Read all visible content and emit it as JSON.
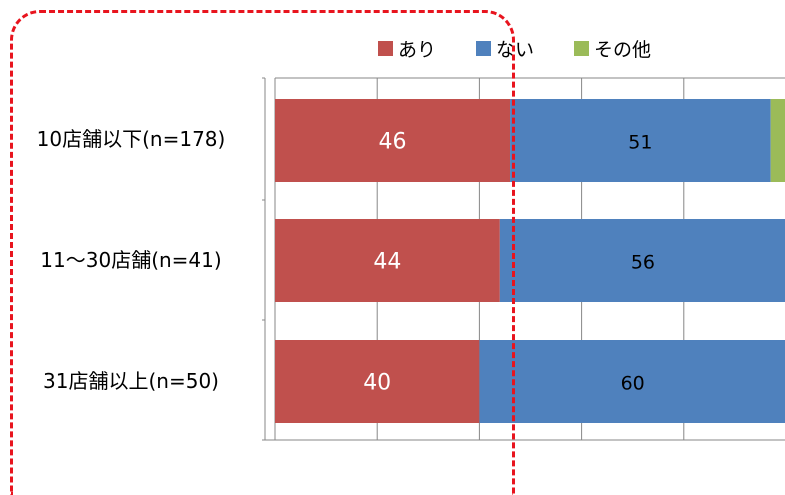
{
  "legend": [
    {
      "label": "あり",
      "color": "#c0504d"
    },
    {
      "label": "ない",
      "color": "#4f81bd"
    },
    {
      "label": "その他",
      "color": "#9bbb59"
    }
  ],
  "chart_data": {
    "type": "bar",
    "orientation": "horizontal-stacked",
    "categories": [
      "10店舗以下(n=178)",
      "11〜30店舗(n=41)",
      "31店舗以上(n=50)"
    ],
    "series": [
      {
        "name": "あり",
        "values": [
          46,
          44,
          40
        ],
        "color": "#c0504d",
        "label_color": "#ffffff"
      },
      {
        "name": "ない",
        "values": [
          51,
          56,
          60
        ],
        "color": "#4f81bd",
        "label_color": "#000000"
      },
      {
        "name": "その他",
        "values": [
          3,
          0,
          0
        ],
        "color": "#9bbb59",
        "label_color": "#000000"
      }
    ],
    "xlim": [
      0,
      100
    ],
    "gridlines": [
      0,
      20,
      40,
      60,
      80,
      100
    ],
    "grid": true,
    "legend_position": "top",
    "highlight": "dashed red outline around あり series"
  }
}
